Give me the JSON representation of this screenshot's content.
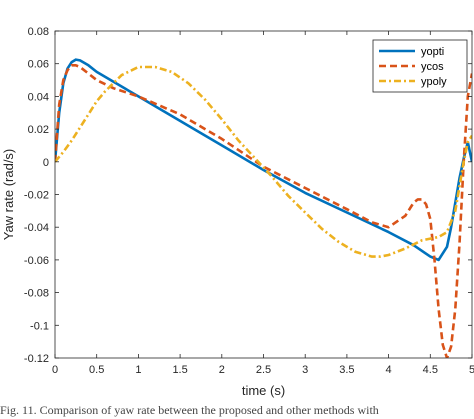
{
  "chart_data": {
    "type": "line",
    "xlabel": "time (s)",
    "ylabel": "Yaw rate (rad/s)",
    "xlim": [
      0,
      5
    ],
    "ylim": [
      -0.12,
      0.08
    ],
    "xticks": [
      "0",
      "0.5",
      "1",
      "1.5",
      "2",
      "2.5",
      "3",
      "3.5",
      "4",
      "4.5",
      "5"
    ],
    "yticks": [
      "0.08",
      "0.06",
      "0.04",
      "0.02",
      "0",
      "-0.02",
      "-0.04",
      "-0.06",
      "-0.08",
      "-0.1",
      "-0.12"
    ],
    "grid": false,
    "legend_position": "top-right",
    "series": [
      {
        "name": "yopti",
        "color": "#0072BD",
        "style": "solid",
        "x": [
          0,
          0.05,
          0.1,
          0.15,
          0.2,
          0.25,
          0.3,
          0.4,
          0.5,
          1.0,
          1.5,
          2.0,
          2.5,
          3.0,
          3.5,
          4.0,
          4.3,
          4.5,
          4.6,
          4.7,
          4.75,
          4.8,
          4.85,
          4.9,
          4.95,
          5.0
        ],
        "y": [
          0,
          0.03,
          0.048,
          0.057,
          0.061,
          0.0625,
          0.062,
          0.059,
          0.055,
          0.04,
          0.025,
          0.01,
          -0.005,
          -0.019,
          -0.031,
          -0.043,
          -0.051,
          -0.058,
          -0.06,
          -0.052,
          -0.04,
          -0.025,
          -0.01,
          0.002,
          0.012,
          0.0
        ]
      },
      {
        "name": "ycos",
        "color": "#D95319",
        "style": "dashed",
        "x": [
          0,
          0.05,
          0.1,
          0.15,
          0.2,
          0.25,
          0.3,
          0.4,
          0.5,
          0.7,
          1.0,
          1.5,
          2.0,
          2.5,
          3.0,
          3.5,
          3.8,
          4.0,
          4.2,
          4.3,
          4.35,
          4.4,
          4.45,
          4.5,
          4.55,
          4.6,
          4.65,
          4.7,
          4.75,
          4.8,
          4.85,
          4.9,
          4.95,
          5.0
        ],
        "y": [
          0,
          0.035,
          0.05,
          0.056,
          0.059,
          0.059,
          0.058,
          0.054,
          0.05,
          0.045,
          0.04,
          0.029,
          0.014,
          -0.003,
          -0.016,
          -0.029,
          -0.037,
          -0.04,
          -0.033,
          -0.025,
          -0.023,
          -0.023,
          -0.026,
          -0.035,
          -0.06,
          -0.09,
          -0.112,
          -0.12,
          -0.113,
          -0.09,
          -0.05,
          0.0,
          0.04,
          0.054
        ]
      },
      {
        "name": "ypoly",
        "color": "#EDB120",
        "style": "dashdot",
        "x": [
          0,
          0.1,
          0.2,
          0.3,
          0.4,
          0.5,
          0.6,
          0.8,
          1.0,
          1.2,
          1.4,
          1.6,
          1.8,
          2.0,
          2.2,
          2.4,
          2.6,
          2.8,
          3.0,
          3.2,
          3.4,
          3.6,
          3.8,
          3.9,
          4.0,
          4.2,
          4.4,
          4.6,
          4.7,
          4.8,
          4.85,
          4.9,
          4.95,
          5.0
        ],
        "y": [
          0,
          0.006,
          0.013,
          0.021,
          0.029,
          0.037,
          0.043,
          0.053,
          0.058,
          0.058,
          0.055,
          0.048,
          0.038,
          0.026,
          0.013,
          0.002,
          -0.009,
          -0.021,
          -0.031,
          -0.041,
          -0.049,
          -0.055,
          -0.058,
          -0.058,
          -0.057,
          -0.053,
          -0.048,
          -0.046,
          -0.043,
          -0.03,
          -0.015,
          0.0,
          0.012,
          0.016
        ]
      }
    ]
  },
  "caption": "Fig. 11. Comparison of yaw rate between the proposed and other methods with"
}
